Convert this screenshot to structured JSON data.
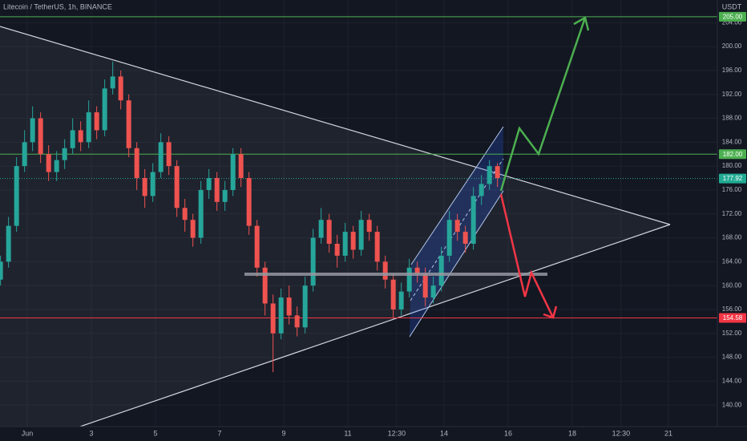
{
  "chart_data": {
    "type": "candlestick",
    "title": "Litecoin / TetherUS, 1h, BINANCE",
    "currency": "USDT",
    "up_color": "#26a69a",
    "down_color": "#ef5350",
    "xlim": [
      -20.4,
      516.6
    ],
    "ylim": [
      136.4,
      207.8
    ],
    "xticks": [
      {
        "value": 0,
        "label": "Jun"
      },
      {
        "value": 48,
        "label": "3"
      },
      {
        "value": 96,
        "label": "5"
      },
      {
        "value": 144,
        "label": "7"
      },
      {
        "value": 192,
        "label": "9"
      },
      {
        "value": 240,
        "label": "11"
      },
      {
        "value": 276.5,
        "label": "12:30"
      },
      {
        "value": 312,
        "label": "14"
      },
      {
        "value": 360,
        "label": "16"
      },
      {
        "value": 408,
        "label": "18"
      },
      {
        "value": 444.5,
        "label": "12:30"
      },
      {
        "value": 480,
        "label": "21"
      }
    ],
    "yticks": [
      {
        "value": 140,
        "label": "140.00"
      },
      {
        "value": 144,
        "label": "144.00"
      },
      {
        "value": 148,
        "label": "148.00"
      },
      {
        "value": 152,
        "label": "152.00"
      },
      {
        "value": 156,
        "label": "156.00"
      },
      {
        "value": 160,
        "label": "160.00"
      },
      {
        "value": 164,
        "label": "164.00"
      },
      {
        "value": 168,
        "label": "168.00"
      },
      {
        "value": 172,
        "label": "172.00"
      },
      {
        "value": 176,
        "label": "176.00"
      },
      {
        "value": 180,
        "label": "180.00"
      },
      {
        "value": 184,
        "label": "184.00"
      },
      {
        "value": 188,
        "label": "188.00"
      },
      {
        "value": 192,
        "label": "192.00"
      },
      {
        "value": 196,
        "label": "196.00"
      },
      {
        "value": 200,
        "label": "200.00"
      },
      {
        "value": 204,
        "label": "204.00"
      }
    ],
    "price_levels": [
      {
        "value": 205,
        "label": "205.00",
        "color": "#4caf50"
      },
      {
        "value": 182,
        "label": "182.00",
        "color": "#4caf50"
      },
      {
        "value": 177.92,
        "label": "177.92",
        "color": "#22ab94"
      },
      {
        "value": 154.58,
        "label": "154.58",
        "color": "#f23645"
      }
    ],
    "x": [
      -20,
      -14,
      -8,
      -2,
      4,
      10,
      16,
      22,
      28,
      34,
      40,
      46,
      52,
      58,
      64,
      70,
      76,
      82,
      88,
      94,
      100,
      106,
      112,
      118,
      124,
      130,
      136,
      142,
      148,
      154,
      160,
      166,
      172,
      178,
      184,
      190,
      196,
      202,
      208,
      214,
      220,
      226,
      232,
      238,
      244,
      250,
      256,
      262,
      268,
      274,
      280,
      286,
      292,
      298,
      304,
      310,
      316,
      322,
      328,
      334,
      340,
      346,
      352
    ],
    "open": [
      161,
      164,
      170,
      180,
      184,
      188,
      182,
      179,
      181,
      183,
      186,
      184,
      189,
      186,
      193,
      195,
      191,
      183,
      178,
      175,
      179,
      184,
      180,
      173,
      171,
      168,
      176,
      178,
      174,
      176,
      182,
      178,
      170,
      163,
      157,
      152,
      158,
      155,
      153,
      160,
      168,
      171,
      167,
      165,
      169,
      166,
      171,
      169,
      164,
      161,
      156,
      159,
      163,
      162,
      158,
      160,
      165,
      171,
      169,
      167,
      175,
      177,
      180
    ],
    "high": [
      165,
      171.5,
      181.5,
      186,
      190,
      189,
      183.5,
      182.5,
      184.5,
      188,
      187.5,
      191,
      190,
      194.5,
      197.5,
      196,
      192,
      184,
      179.5,
      180.5,
      185.5,
      185,
      181,
      174.5,
      172,
      177.5,
      179.5,
      179,
      177.5,
      183,
      183,
      179,
      171,
      164,
      158.5,
      159.5,
      160,
      156.5,
      161.5,
      169.5,
      173,
      172,
      168.5,
      170.5,
      170,
      172.5,
      172,
      170,
      165,
      162,
      160.5,
      164.5,
      164,
      163,
      161.5,
      166.5,
      172.5,
      172,
      170,
      176.5,
      178.5,
      181,
      180.5
    ],
    "low": [
      160,
      163,
      169,
      179,
      182.5,
      180.5,
      177.5,
      177.5,
      179.5,
      182,
      182.5,
      183,
      184.5,
      185,
      192,
      189.5,
      181.5,
      176,
      173,
      174,
      178,
      178.5,
      171.5,
      169,
      166.5,
      167,
      174.5,
      172.5,
      172.5,
      175,
      176.5,
      168.5,
      161.5,
      155,
      145.5,
      151,
      153.5,
      151.5,
      152,
      159,
      167,
      165.5,
      163,
      164,
      164.5,
      165,
      167.5,
      162.5,
      159.5,
      154.5,
      155,
      158,
      160.5,
      156.5,
      157,
      159,
      164,
      167.5,
      165.5,
      166,
      173.5,
      176,
      176.5
    ],
    "close": [
      164,
      170,
      180,
      184,
      188,
      182,
      179,
      181,
      183,
      186,
      184,
      189,
      186,
      193,
      195,
      191,
      183,
      178,
      175,
      179,
      184,
      180,
      173,
      171,
      168,
      176,
      178,
      174,
      176,
      182,
      178,
      170,
      163,
      157,
      152,
      158,
      155,
      153,
      160,
      168,
      171,
      167,
      165,
      169,
      166,
      171,
      169,
      164,
      161,
      156,
      159,
      163,
      162,
      158,
      160,
      165,
      171,
      169,
      167,
      175,
      177,
      180,
      178
    ]
  }
}
